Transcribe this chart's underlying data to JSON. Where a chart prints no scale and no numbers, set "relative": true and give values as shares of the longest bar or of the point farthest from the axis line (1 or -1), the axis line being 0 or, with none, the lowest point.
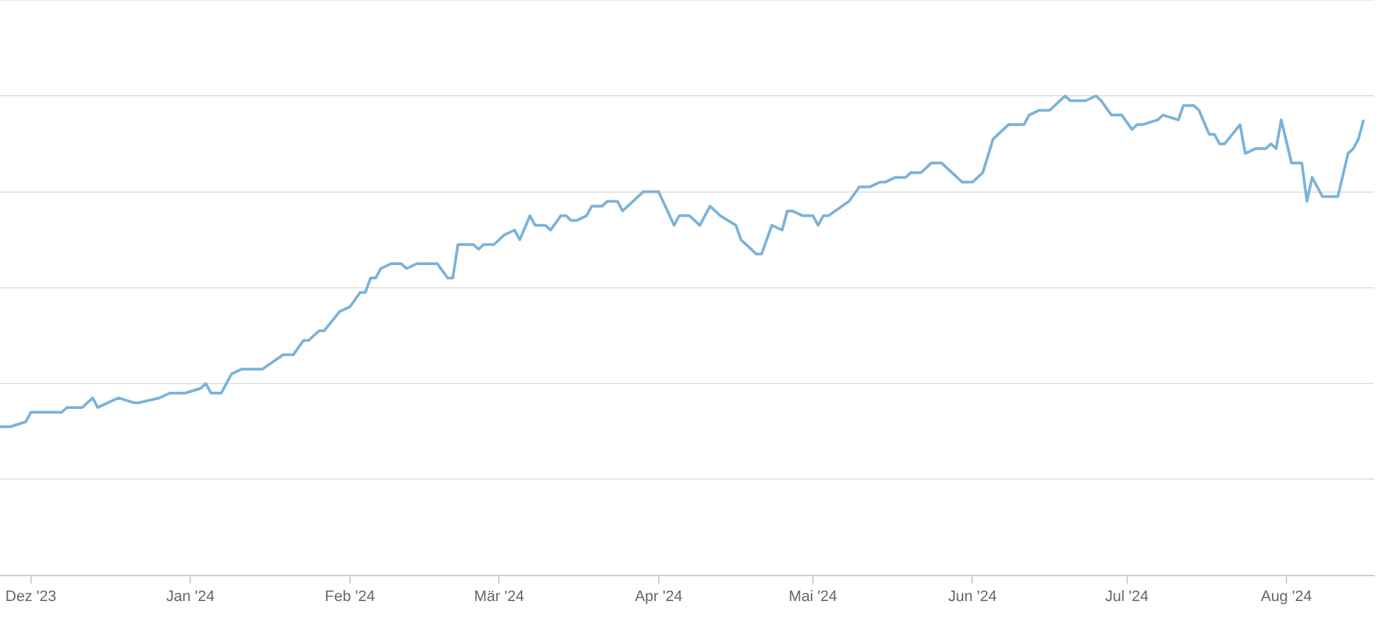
{
  "chart_data": {
    "type": "line",
    "relative": true,
    "grid": "y",
    "legend": false,
    "marker": "none",
    "line_style": "solid",
    "xlim": [
      "2023-11-25",
      "2024-08-18"
    ],
    "xticks": [
      {
        "value": "2023-12-01",
        "label": "Dez '23"
      },
      {
        "value": "2024-01-01",
        "label": "Jan '24"
      },
      {
        "value": "2024-02-01",
        "label": "Feb '24"
      },
      {
        "value": "2024-03-01",
        "label": "Mär '24"
      },
      {
        "value": "2024-04-01",
        "label": "Apr '24"
      },
      {
        "value": "2024-05-01",
        "label": "Mai '24"
      },
      {
        "value": "2024-06-01",
        "label": "Jun '24"
      },
      {
        "value": "2024-07-01",
        "label": "Jul '24"
      },
      {
        "value": "2024-08-01",
        "label": "Aug '24"
      }
    ],
    "x": [
      "2023-11-25",
      "2023-11-27",
      "2023-11-30",
      "2023-12-01",
      "2023-12-03",
      "2023-12-05",
      "2023-12-07",
      "2023-12-08",
      "2023-12-11",
      "2023-12-13",
      "2023-12-14",
      "2023-12-16",
      "2023-12-18",
      "2023-12-21",
      "2023-12-22",
      "2023-12-26",
      "2023-12-28",
      "2023-12-31",
      "2024-01-03",
      "2024-01-04",
      "2024-01-05",
      "2024-01-07",
      "2024-01-09",
      "2024-01-11",
      "2024-01-15",
      "2024-01-19",
      "2024-01-21",
      "2024-01-23",
      "2024-01-24",
      "2024-01-26",
      "2024-01-27",
      "2024-01-30",
      "2024-02-01",
      "2024-02-03",
      "2024-02-04",
      "2024-02-05",
      "2024-02-06",
      "2024-02-07",
      "2024-02-09",
      "2024-02-11",
      "2024-02-12",
      "2024-02-14",
      "2024-02-16",
      "2024-02-18",
      "2024-02-20",
      "2024-02-21",
      "2024-02-22",
      "2024-02-25",
      "2024-02-26",
      "2024-02-27",
      "2024-02-29",
      "2024-03-02",
      "2024-03-04",
      "2024-03-05",
      "2024-03-07",
      "2024-03-08",
      "2024-03-10",
      "2024-03-11",
      "2024-03-13",
      "2024-03-14",
      "2024-03-15",
      "2024-03-16",
      "2024-03-18",
      "2024-03-19",
      "2024-03-21",
      "2024-03-22",
      "2024-03-24",
      "2024-03-25",
      "2024-03-26",
      "2024-03-29",
      "2024-04-01",
      "2024-04-04",
      "2024-04-05",
      "2024-04-07",
      "2024-04-09",
      "2024-04-11",
      "2024-04-13",
      "2024-04-16",
      "2024-04-17",
      "2024-04-20",
      "2024-04-21",
      "2024-04-23",
      "2024-04-25",
      "2024-04-26",
      "2024-04-27",
      "2024-04-29",
      "2024-05-01",
      "2024-05-02",
      "2024-05-03",
      "2024-05-04",
      "2024-05-08",
      "2024-05-10",
      "2024-05-12",
      "2024-05-14",
      "2024-05-15",
      "2024-05-17",
      "2024-05-19",
      "2024-05-20",
      "2024-05-22",
      "2024-05-24",
      "2024-05-26",
      "2024-05-28",
      "2024-05-30",
      "2024-06-01",
      "2024-06-03",
      "2024-06-05",
      "2024-06-06",
      "2024-06-08",
      "2024-06-11",
      "2024-06-12",
      "2024-06-14",
      "2024-06-16",
      "2024-06-19",
      "2024-06-20",
      "2024-06-21",
      "2024-06-23",
      "2024-06-25",
      "2024-06-26",
      "2024-06-28",
      "2024-06-30",
      "2024-07-02",
      "2024-07-03",
      "2024-07-04",
      "2024-07-07",
      "2024-07-08",
      "2024-07-11",
      "2024-07-12",
      "2024-07-14",
      "2024-07-15",
      "2024-07-17",
      "2024-07-18",
      "2024-07-19",
      "2024-07-20",
      "2024-07-23",
      "2024-07-24",
      "2024-07-26",
      "2024-07-28",
      "2024-07-29",
      "2024-07-30",
      "2024-07-31",
      "2024-08-02",
      "2024-08-04",
      "2024-08-05",
      "2024-08-06",
      "2024-08-08",
      "2024-08-11",
      "2024-08-13",
      "2024-08-14",
      "2024-08-15",
      "2024-08-16"
    ],
    "series": [
      {
        "color": "#7ab3da",
        "values": [
          0.31,
          0.31,
          0.32,
          0.34,
          0.34,
          0.34,
          0.34,
          0.35,
          0.35,
          0.37,
          0.35,
          0.36,
          0.37,
          0.36,
          0.36,
          0.37,
          0.38,
          0.38,
          0.39,
          0.4,
          0.38,
          0.38,
          0.42,
          0.43,
          0.43,
          0.46,
          0.46,
          0.49,
          0.49,
          0.51,
          0.51,
          0.55,
          0.56,
          0.59,
          0.59,
          0.62,
          0.62,
          0.64,
          0.65,
          0.65,
          0.64,
          0.65,
          0.65,
          0.65,
          0.62,
          0.62,
          0.69,
          0.69,
          0.68,
          0.69,
          0.69,
          0.71,
          0.72,
          0.7,
          0.75,
          0.73,
          0.73,
          0.72,
          0.75,
          0.75,
          0.74,
          0.74,
          0.75,
          0.77,
          0.77,
          0.78,
          0.78,
          0.76,
          0.77,
          0.8,
          0.8,
          0.73,
          0.75,
          0.75,
          0.73,
          0.77,
          0.75,
          0.73,
          0.7,
          0.67,
          0.67,
          0.73,
          0.72,
          0.76,
          0.76,
          0.75,
          0.75,
          0.73,
          0.75,
          0.75,
          0.78,
          0.81,
          0.81,
          0.82,
          0.82,
          0.83,
          0.83,
          0.84,
          0.84,
          0.86,
          0.86,
          0.84,
          0.82,
          0.82,
          0.84,
          0.91,
          0.92,
          0.94,
          0.94,
          0.96,
          0.97,
          0.97,
          1,
          0.99,
          0.99,
          0.99,
          1,
          0.99,
          0.96,
          0.96,
          0.93,
          0.94,
          0.94,
          0.95,
          0.96,
          0.95,
          0.98,
          0.98,
          0.97,
          0.92,
          0.92,
          0.9,
          0.9,
          0.94,
          0.88,
          0.89,
          0.89,
          0.9,
          0.89,
          0.95,
          0.86,
          0.86,
          0.78,
          0.83,
          0.79,
          0.79,
          0.88,
          0.89,
          0.91,
          0.95
        ]
      }
    ]
  }
}
